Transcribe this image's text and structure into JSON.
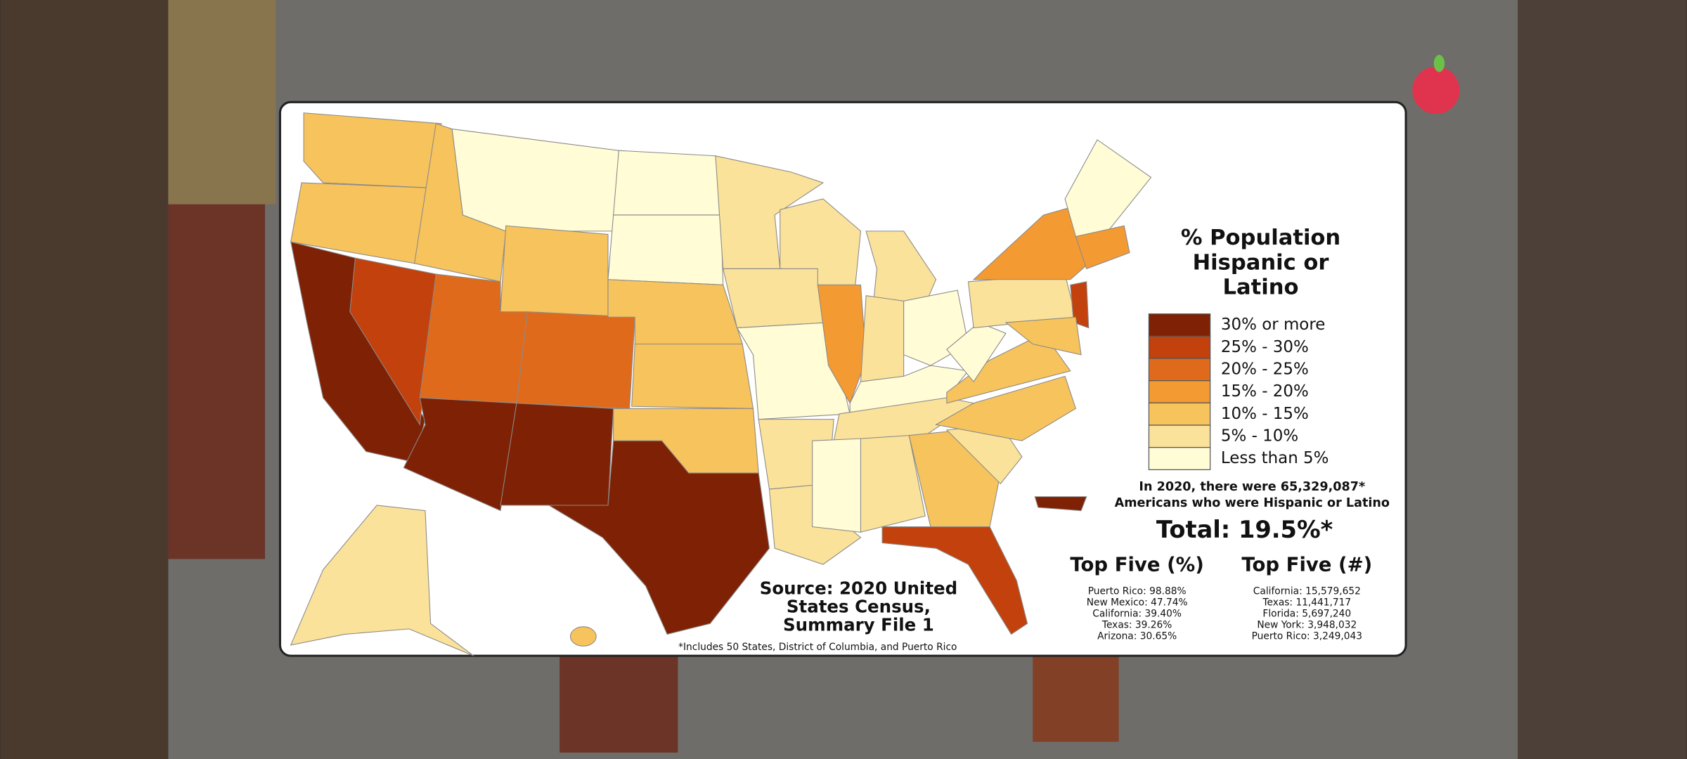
{
  "map": {
    "title_lines": [
      "% Population",
      "Hispanic or",
      "Latino"
    ],
    "legend": [
      {
        "label": "30% or more",
        "color": "#7f2104"
      },
      {
        "label": "25% - 30%",
        "color": "#c2410c"
      },
      {
        "label": "20% - 25%",
        "color": "#e06a1c"
      },
      {
        "label": "15% - 20%",
        "color": "#f39a32"
      },
      {
        "label": "10% - 15%",
        "color": "#f7c35c"
      },
      {
        "label": "5% - 10%",
        "color": "#fbe29a"
      },
      {
        "label": "Less than 5%",
        "color": "#fffcd6"
      }
    ],
    "note_lines": [
      "In 2020, there were 65,329,087*",
      "Americans who were Hispanic or Latino"
    ],
    "total": "Total: 19.5%*",
    "top_percent": {
      "title": "Top Five (%)",
      "items": [
        "Puerto Rico: 98.88%",
        "New Mexico: 47.74%",
        "California: 39.40%",
        "Texas: 39.26%",
        "Arizona: 30.65%"
      ]
    },
    "top_number": {
      "title": "Top Five (#)",
      "items": [
        "California: 15,579,652",
        "Texas: 11,441,717",
        "Florida: 5,697,240",
        "New York: 3,948,032",
        "Puerto Rico: 3,249,043"
      ]
    },
    "source_lines": [
      "Source: 2020 United",
      "States Census,",
      "Summary File 1"
    ],
    "footnote": "*Includes 50 States, District of Columbia, and Puerto Rico"
  }
}
